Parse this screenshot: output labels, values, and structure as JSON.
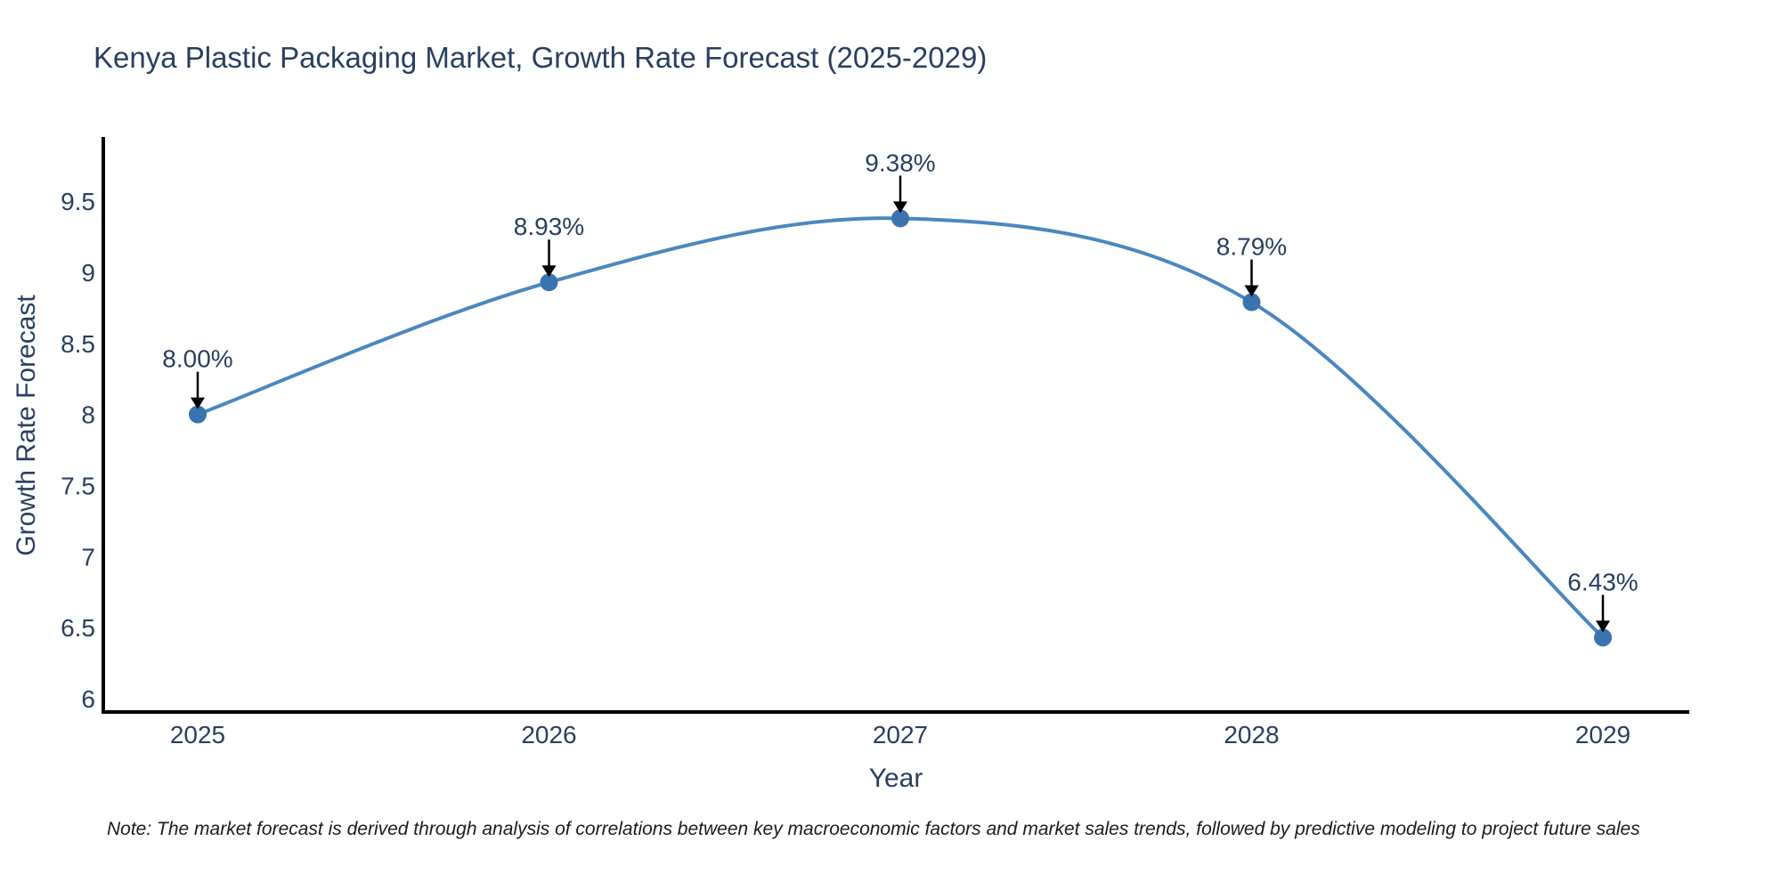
{
  "chart": {
    "note": "Note: The market forecast is derived through analysis of correlations between key macroeconomic factors and market sales trends, followed by predictive modeling to project future sales"
  },
  "chart_data": {
    "type": "line",
    "title": "Kenya Plastic Packaging Market, Growth Rate Forecast (2025-2029)",
    "xlabel": "Year",
    "ylabel": "Growth Rate Forecast",
    "x": [
      2025,
      2026,
      2027,
      2028,
      2029
    ],
    "values": [
      8.0,
      8.93,
      9.38,
      8.79,
      6.43
    ],
    "point_labels": [
      "8.00%",
      "8.93%",
      "9.38%",
      "8.79%",
      "6.43%"
    ],
    "yticks": [
      6,
      6.5,
      7,
      7.5,
      8,
      8.5,
      9,
      9.5
    ],
    "ylim": [
      5.9,
      9.95
    ],
    "line_shape": "spline",
    "grid": false,
    "legend": "none",
    "markers": true,
    "annotation_arrows": true,
    "colors": {
      "line": "#4a87bf",
      "marker": "#3a74ae",
      "text": "#2a3f5f",
      "axis": "#000000",
      "arrow": "#000000",
      "note_text": "#1c1c1c",
      "background": "#ffffff"
    }
  }
}
